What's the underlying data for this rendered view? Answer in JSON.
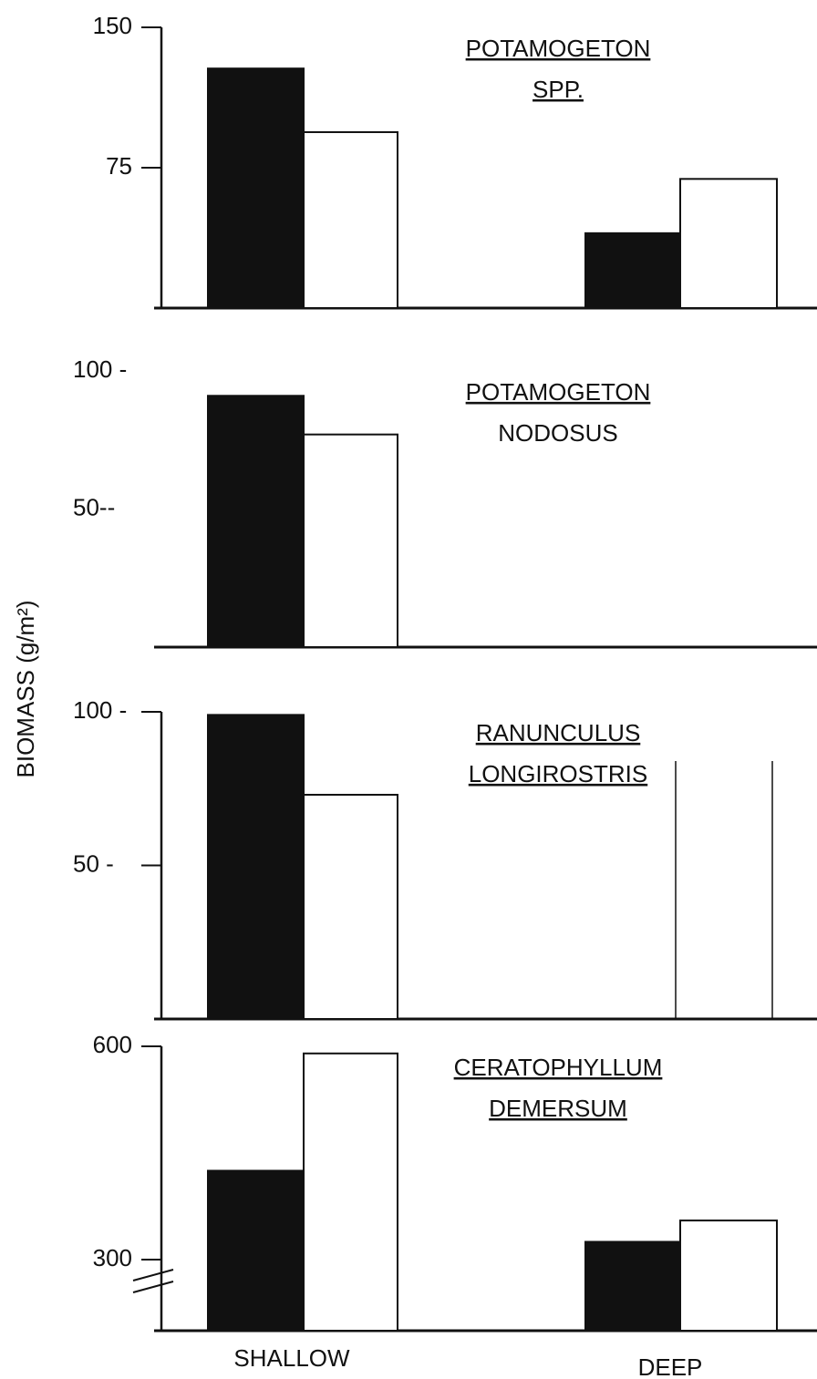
{
  "shared_ylabel": "BIOMASS (g/m²)",
  "chart_data": [
    {
      "type": "bar",
      "title": "POTAMOGETON",
      "subtitle": "SPP.",
      "ylim": [
        0,
        150
      ],
      "yticks": [
        75,
        150
      ],
      "left_axis": true,
      "series": [
        {
          "color": "#111111",
          "values": [
            128,
            40
          ]
        },
        {
          "color": "#ffffff",
          "values": [
            94,
            69
          ]
        }
      ]
    },
    {
      "type": "bar",
      "title": "POTAMOGETON",
      "subtitle": "NODOSUS",
      "ylim": [
        0,
        100
      ],
      "yticks": [
        {
          "value": 50,
          "label": "50--"
        },
        {
          "value": 100,
          "label": "100 -"
        }
      ],
      "left_axis": false,
      "series": [
        {
          "color": "#111111",
          "values": [
            91,
            null
          ]
        },
        {
          "color": "#ffffff",
          "values": [
            77,
            null
          ]
        }
      ]
    },
    {
      "type": "bar",
      "title": "RANUNCULUS",
      "subtitle": "LONGIROSTRIS",
      "ylim": [
        0,
        100
      ],
      "yticks": [
        {
          "value": 50,
          "label": "50 -"
        },
        {
          "value": 100,
          "label": "100 -"
        }
      ],
      "left_axis": true,
      "series": [
        {
          "color": "#111111",
          "values": [
            99,
            null
          ]
        },
        {
          "color": "#ffffff",
          "values": [
            73,
            null
          ]
        }
      ]
    },
    {
      "type": "bar",
      "title": "CERATOPHYLLUM",
      "subtitle": "DEMERSUM",
      "ylim": [
        200,
        600
      ],
      "yticks": [
        300,
        600
      ],
      "left_axis": true,
      "categories": [
        "SHALLOW",
        "DEEP"
      ],
      "series": [
        {
          "color": "#111111",
          "values": [
            425,
            325
          ]
        },
        {
          "color": "#ffffff",
          "values": [
            590,
            355
          ]
        }
      ]
    }
  ]
}
